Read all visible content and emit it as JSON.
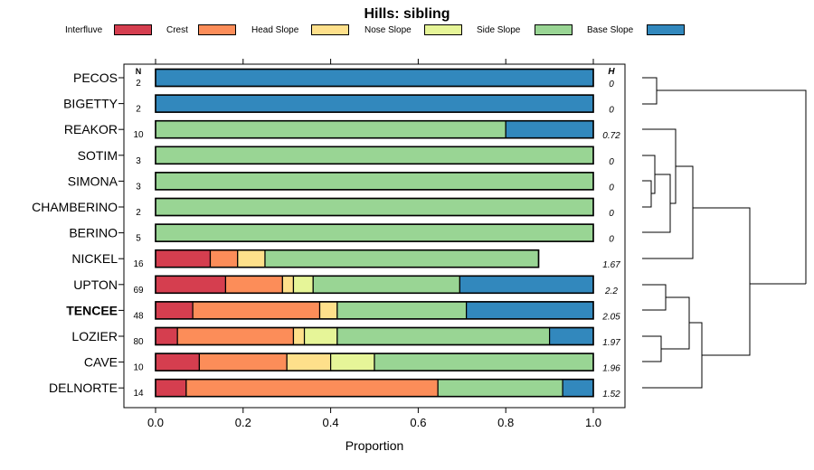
{
  "chart_data": {
    "type": "bar",
    "orientation": "horizontal",
    "stacked": true,
    "title": "Hills: sibling",
    "xlabel": "Proportion",
    "ylabel": "",
    "xlim": [
      0,
      1
    ],
    "xticks": [
      "0.0",
      "0.2",
      "0.4",
      "0.6",
      "0.8",
      "1.0"
    ],
    "legend_position": "top",
    "series_names": [
      "Interfluve",
      "Crest",
      "Head Slope",
      "Nose Slope",
      "Side Slope",
      "Base Slope"
    ],
    "colors": [
      "#d53e4f",
      "#fc8d59",
      "#fee08b",
      "#e6f598",
      "#99d594",
      "#3288bd"
    ],
    "n_header": "N",
    "h_header": "H",
    "categories": [
      "PECOS",
      "BIGETTY",
      "REAKOR",
      "SOTIM",
      "SIMONA",
      "CHAMBERINO",
      "BERINO",
      "NICKEL",
      "UPTON",
      "TENCEE",
      "LOZIER",
      "CAVE",
      "DELNORTE"
    ],
    "bold_category": "TENCEE",
    "n": [
      "2",
      "2",
      "10",
      "3",
      "3",
      "2",
      "5",
      "16",
      "69",
      "48",
      "80",
      "10",
      "14"
    ],
    "h": [
      "0",
      "0",
      "0.72",
      "0",
      "0",
      "0",
      "0",
      "1.67",
      "2.2",
      "2.05",
      "1.97",
      "1.96",
      "1.52"
    ],
    "values": [
      [
        0,
        0,
        0,
        0,
        0,
        1.0
      ],
      [
        0,
        0,
        0,
        0,
        0,
        1.0
      ],
      [
        0,
        0,
        0,
        0,
        0.8,
        0.2
      ],
      [
        0,
        0,
        0,
        0,
        1.0,
        0
      ],
      [
        0,
        0,
        0,
        0,
        1.0,
        0
      ],
      [
        0,
        0,
        0,
        0,
        1.0,
        0
      ],
      [
        0,
        0,
        0,
        0,
        1.0,
        0
      ],
      [
        0.125,
        0.0625,
        0.0625,
        0,
        0.625,
        0
      ],
      [
        0.16,
        0.13,
        0.025,
        0.045,
        0.335,
        0.305
      ],
      [
        0.085,
        0.29,
        0.04,
        0,
        0.295,
        0.29
      ],
      [
        0.05,
        0.265,
        0.025,
        0.075,
        0.485,
        0.1
      ],
      [
        0.1,
        0.2,
        0.1,
        0.1,
        0.5,
        0
      ],
      [
        0.07,
        0.575,
        0,
        0,
        0.285,
        0.07
      ]
    ],
    "dendrogram": "hierarchical clustering of series profiles"
  }
}
